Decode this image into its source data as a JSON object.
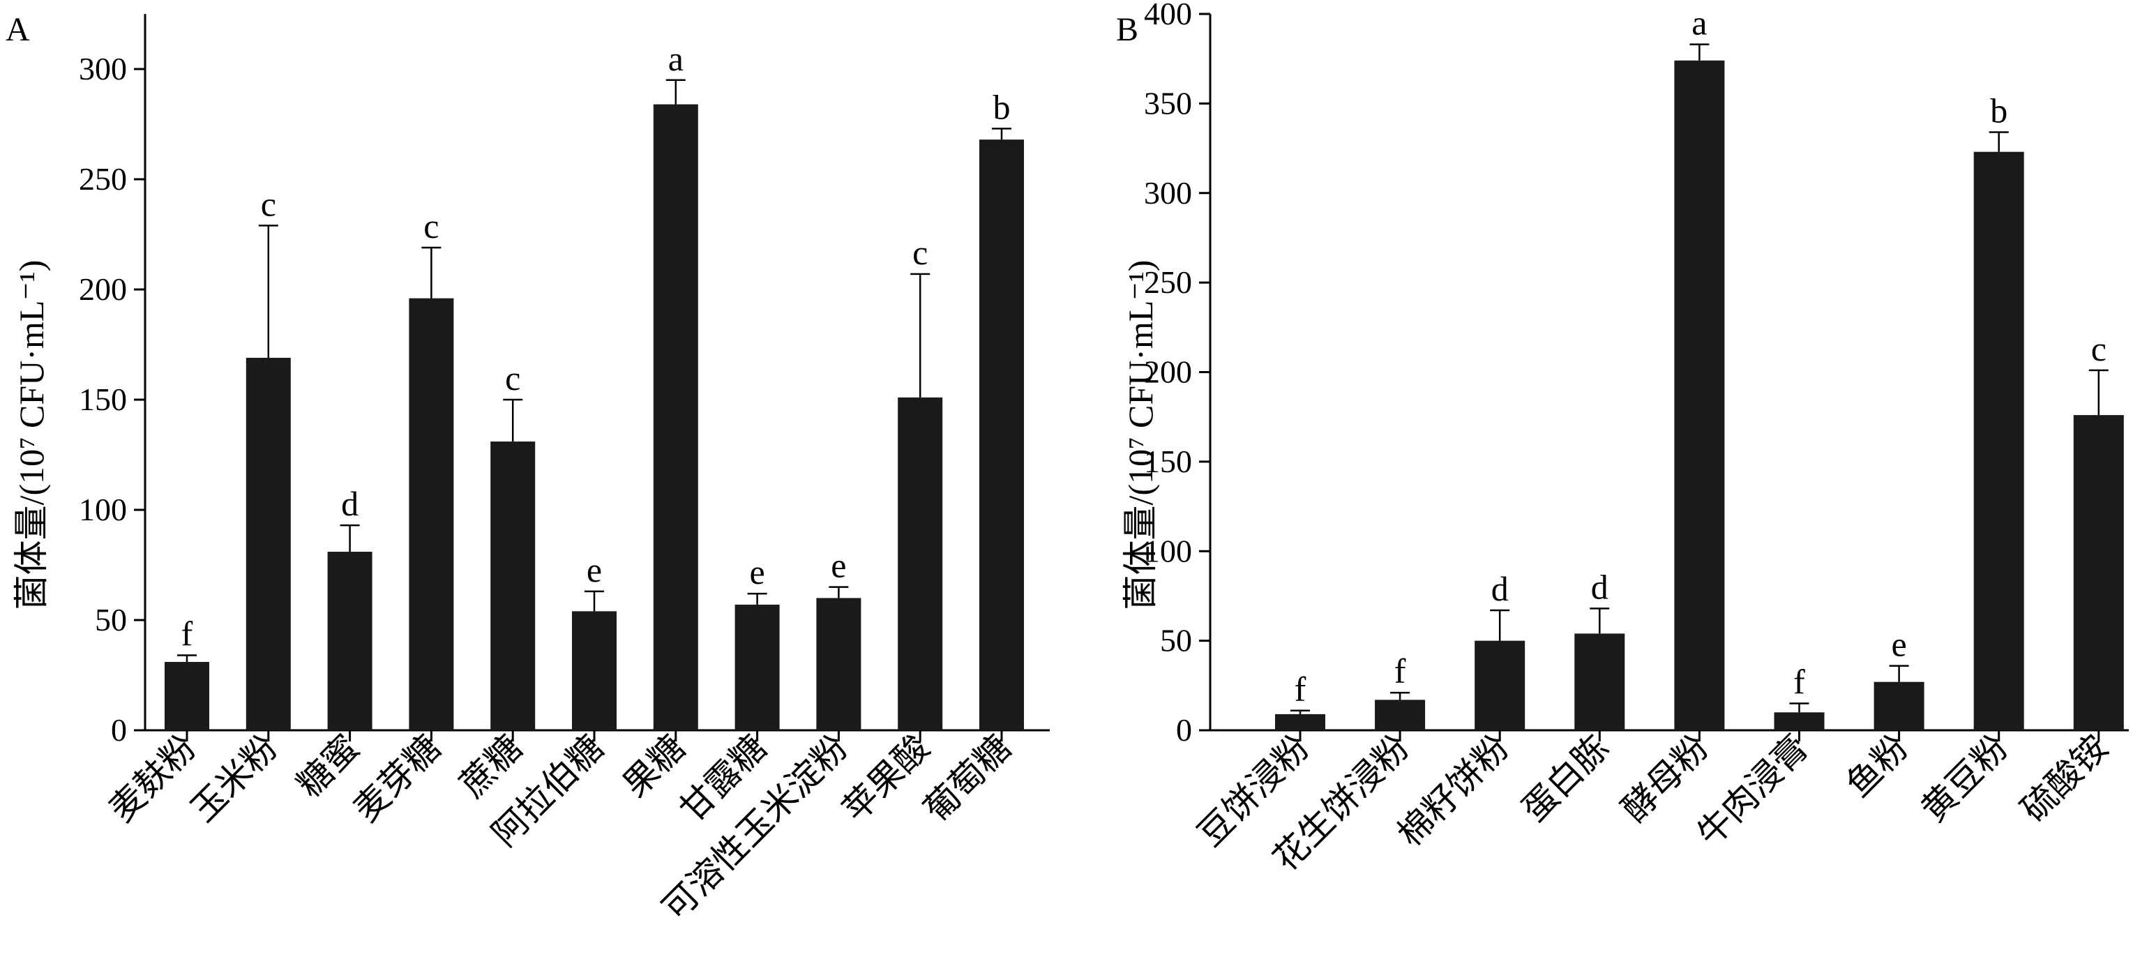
{
  "chart_data": [
    {
      "type": "bar",
      "panel": "A",
      "ylabel": "菌体量/(10⁷ CFU·mL⁻¹)",
      "ylim": [
        0,
        325
      ],
      "yticks": [
        0,
        50,
        100,
        150,
        200,
        250,
        300
      ],
      "categories": [
        "麦麸粉",
        "玉米粉",
        "糖蜜",
        "麦芽糖",
        "蔗糖",
        "阿拉伯糖",
        "果糖",
        "甘露糖",
        "可溶性玉米淀粉",
        "苹果酸",
        "葡萄糖"
      ],
      "values": [
        31,
        169,
        81,
        196,
        131,
        54,
        284,
        57,
        60,
        151,
        268
      ],
      "errors": [
        3,
        60,
        12,
        23,
        19,
        9,
        11,
        5,
        5,
        56,
        5
      ],
      "significance": [
        "f",
        "c",
        "d",
        "c",
        "c",
        "e",
        "a",
        "e",
        "e",
        "c",
        "b"
      ],
      "bar_color": "#1a1a1a"
    },
    {
      "type": "bar",
      "panel": "B",
      "ylabel": "菌体量/(10⁷ CFU·mL⁻¹)",
      "ylim": [
        0,
        400
      ],
      "yticks": [
        0,
        50,
        100,
        150,
        200,
        250,
        300,
        350,
        400
      ],
      "categories": [
        "豆饼浸粉",
        "花生饼浸粉",
        "棉籽饼粉",
        "蛋白胨",
        "酵母粉",
        "牛肉浸膏",
        "鱼粉",
        "黄豆粉",
        "硫酸铵"
      ],
      "values": [
        9,
        17,
        50,
        54,
        374,
        10,
        27,
        323,
        176
      ],
      "errors": [
        2,
        4,
        17,
        14,
        9,
        5,
        9,
        11,
        25
      ],
      "significance": [
        "f",
        "f",
        "d",
        "d",
        "a",
        "f",
        "e",
        "b",
        "c"
      ],
      "bar_color": "#1a1a1a"
    }
  ]
}
